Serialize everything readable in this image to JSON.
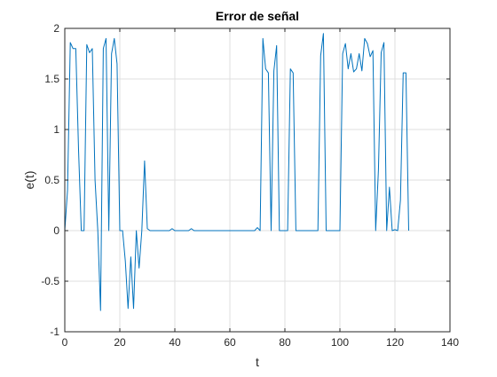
{
  "chart_data": {
    "type": "line",
    "title": "Error de señal",
    "xlabel": "t",
    "ylabel": "e(t)",
    "xlim": [
      0,
      140
    ],
    "ylim": [
      -1,
      2
    ],
    "xticks": [
      0,
      20,
      40,
      60,
      80,
      100,
      120,
      140
    ],
    "yticks": [
      -1,
      -0.5,
      0,
      0.5,
      1,
      1.5,
      2
    ],
    "ytick_labels": [
      "-1",
      "-0.5",
      "0",
      "0.5",
      "1",
      "1.5",
      "2"
    ],
    "grid": true,
    "series": [
      {
        "color": "#0072BD",
        "x": [
          0,
          1,
          2,
          3,
          4,
          5,
          6,
          7,
          8,
          9,
          10,
          11,
          12,
          13,
          14,
          15,
          16,
          17,
          18,
          19,
          20,
          21,
          22,
          23,
          24,
          25,
          26,
          27,
          28,
          29,
          30,
          31,
          32,
          33,
          34,
          35,
          36,
          37,
          38,
          39,
          40,
          41,
          42,
          43,
          44,
          45,
          46,
          47,
          48,
          49,
          50,
          51,
          52,
          53,
          54,
          55,
          56,
          57,
          58,
          59,
          60,
          61,
          62,
          63,
          64,
          65,
          66,
          67,
          68,
          69,
          70,
          71,
          72,
          73,
          74,
          75,
          76,
          77,
          78,
          79,
          80,
          81,
          82,
          83,
          84,
          85,
          86,
          87,
          88,
          89,
          90,
          91,
          92,
          93,
          94,
          95,
          96,
          97,
          98,
          99,
          100,
          101,
          102,
          103,
          104,
          105,
          106,
          107,
          108,
          109,
          110,
          111,
          112,
          113,
          114,
          115,
          116,
          117,
          118,
          119,
          120,
          121,
          122,
          123,
          124,
          125
        ],
        "y": [
          0,
          0.4,
          1.86,
          1.8,
          1.8,
          0.8,
          0,
          0,
          1.84,
          1.76,
          1.8,
          0.5,
          0,
          -0.79,
          1.8,
          1.9,
          0,
          1.75,
          1.9,
          1.65,
          0,
          0,
          -0.3,
          -0.77,
          -0.26,
          -0.77,
          0,
          -0.37,
          0,
          0.69,
          0.02,
          0,
          0,
          0,
          0,
          0,
          0,
          0,
          0,
          0.02,
          0,
          0,
          0,
          0,
          0,
          0,
          0.02,
          0,
          0,
          0,
          0,
          0,
          0,
          0,
          0,
          0,
          0,
          0,
          0,
          0,
          0,
          0,
          0,
          0,
          0,
          0,
          0,
          0,
          0,
          0,
          0.03,
          0,
          1.9,
          1.6,
          1.56,
          0,
          1.58,
          1.83,
          0,
          0,
          0,
          0,
          1.6,
          1.56,
          0,
          0,
          0,
          0,
          0,
          0,
          0,
          0,
          0,
          1.73,
          1.95,
          0,
          0,
          0,
          0,
          0,
          0,
          1.75,
          1.85,
          1.6,
          1.75,
          1.57,
          1.6,
          1.75,
          1.58,
          1.9,
          1.85,
          1.72,
          1.78,
          0,
          0.6,
          1.76,
          1.86,
          0,
          0.43,
          0,
          0.01,
          0,
          0.3,
          1.56,
          1.56,
          0
        ]
      }
    ]
  }
}
